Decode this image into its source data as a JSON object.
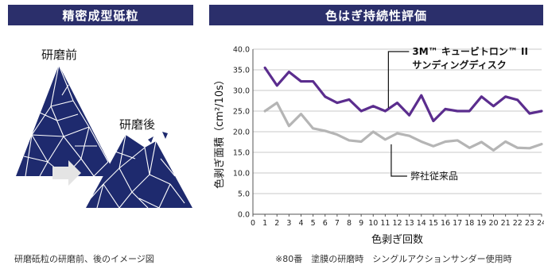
{
  "left_panel": {
    "header": "精密成型砥粒",
    "label_before": "研磨前",
    "label_after": "研磨後",
    "caption": "研磨砥粒の研磨前、後のイメージ図",
    "colors": {
      "grain": "#1e2a6e",
      "arrow": "#e4e4e4"
    }
  },
  "chart_data": {
    "type": "line",
    "title": "色はぎ持続性評価",
    "xlabel": "色剥ぎ回数",
    "ylabel": "色剥ぎ面積（cm²/10s）",
    "x": [
      1,
      2,
      3,
      4,
      5,
      6,
      7,
      8,
      9,
      10,
      11,
      12,
      13,
      14,
      15,
      16,
      17,
      18,
      19,
      20,
      21,
      22,
      23,
      24
    ],
    "xlim": [
      0,
      24
    ],
    "ylim": [
      0,
      40
    ],
    "yticks": [
      "0.0",
      "5.0",
      "10.0",
      "15.0",
      "20.0",
      "25.0",
      "30.0",
      "35.0",
      "40.0"
    ],
    "xticks": [
      "0",
      "1",
      "2",
      "3",
      "4",
      "5",
      "6",
      "7",
      "8",
      "9",
      "10",
      "11",
      "12",
      "13",
      "14",
      "15",
      "16",
      "17",
      "18",
      "19",
      "20",
      "21",
      "22",
      "23",
      "24"
    ],
    "grid": "horizontal",
    "series": [
      {
        "name": "3M™ キュービトロン™ II サンディングディスク",
        "name_line1": "3M™ キュービトロン™ II",
        "name_line2": "サンディングディスク",
        "color": "#5b2d8e",
        "values": [
          35.5,
          31.2,
          34.5,
          32.2,
          32.2,
          28.5,
          27.0,
          27.8,
          25.0,
          26.2,
          25.0,
          27.0,
          24.0,
          28.8,
          22.6,
          25.5,
          25.0,
          25.0,
          28.5,
          26.2,
          28.5,
          27.7,
          24.4,
          25.0
        ]
      },
      {
        "name": "弊社従来品",
        "color": "#b5b5b5",
        "values": [
          25.0,
          27.0,
          21.4,
          24.3,
          20.8,
          20.2,
          19.3,
          17.9,
          17.6,
          20.0,
          18.1,
          19.6,
          19.0,
          17.6,
          16.5,
          17.6,
          17.9,
          16.1,
          17.5,
          15.5,
          17.6,
          16.1,
          16.0,
          17.0
        ]
      }
    ],
    "footnote": "※80番　塗膜の研磨時　シングルアクションサンダー使用時"
  }
}
